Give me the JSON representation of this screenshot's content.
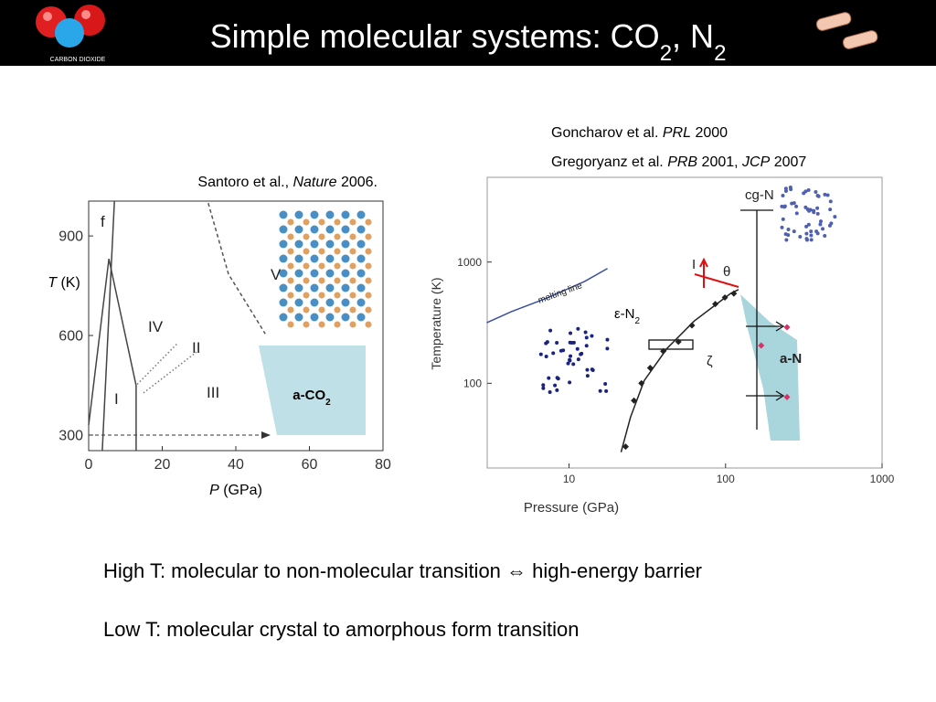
{
  "header": {
    "title": [
      "Simple molecular systems: CO",
      "2",
      ", N",
      "2"
    ],
    "logo_caption": "CARBON DIOXIDE"
  },
  "chart_data": [
    {
      "type": "line",
      "citation": [
        "Santoro et al.,",
        "Nature",
        "2006."
      ],
      "xlabel": [
        "P",
        "(GPa)"
      ],
      "ylabel": [
        "T",
        "(K)"
      ],
      "xlim": [
        0,
        80
      ],
      "xticks": [
        0,
        20,
        40,
        60,
        80
      ],
      "ylim": [
        253,
        1005
      ],
      "yticks": [
        300,
        600,
        900
      ],
      "series": [
        {
          "style": "line",
          "color": "#444444",
          "x": [
            3.7,
            7.0
          ],
          "values": [
            253,
            1005
          ]
        },
        {
          "style": "line",
          "color": "#444444",
          "x": [
            0,
            5.5,
            12.9,
            12.9
          ],
          "values": [
            330,
            831,
            449,
            253
          ]
        },
        {
          "style": "dotted",
          "color": "#777777",
          "x": [
            13.2,
            24.3
          ],
          "values": [
            453,
            578
          ]
        },
        {
          "style": "dotted",
          "color": "#777777",
          "x": [
            14.9,
            29.3
          ],
          "values": [
            427,
            550
          ]
        },
        {
          "style": "dashed",
          "color": "#555555",
          "x": [
            32.5,
            38,
            48
          ],
          "values": [
            999,
            785,
            605
          ]
        }
      ],
      "annotations": [
        "f",
        "V",
        "IV",
        "II",
        "III",
        "I"
      ],
      "region_label": [
        "a-CO",
        "2"
      ]
    },
    {
      "type": "line",
      "citation": [
        [
          "Goncharov et al.",
          "PRL",
          "2000"
        ],
        [
          "Gregoryanz et al.",
          "PRB",
          "2001,",
          "JCP",
          "2007"
        ]
      ],
      "xlabel": "Pressure (GPa)",
      "ylabel": "Temperature (K)",
      "xlog": true,
      "ylog": true,
      "xlim": [
        3,
        1000
      ],
      "xticks": [
        10,
        100,
        1000
      ],
      "ylim": [
        20,
        5000
      ],
      "yticks": [
        100,
        1000
      ],
      "series": [
        {
          "style": "line",
          "color": "#3a4fa0",
          "x": [
            2.98,
            4.28,
            7.3,
            12.6,
            17.6
          ],
          "values": [
            316,
            390,
            507,
            693,
            885
          ]
        },
        {
          "style": "line",
          "color": "#222222",
          "x": [
            21.5,
            24.7,
            30.2,
            42.3,
            63.2,
            108,
            121
          ],
          "values": [
            27,
            52.5,
            105,
            194,
            327,
            552,
            593
          ]
        },
        {
          "style": "markers",
          "color": "#222222",
          "x": [
            23,
            26,
            29,
            33,
            40,
            50,
            61,
            86,
            99,
            113
          ],
          "values": [
            30,
            72,
            100,
            134,
            184,
            220,
            300,
            450,
            510,
            550
          ]
        },
        {
          "style": "markers",
          "color": "#d8306a",
          "x": [
            247,
            169,
            247
          ],
          "values": [
            290,
            205,
            77
          ]
        }
      ],
      "annotations": [
        "melting line",
        "cg-N",
        "a-N",
        "ζ",
        "θ",
        "I"
      ],
      "phase_label": [
        "ε-N",
        "2"
      ]
    }
  ],
  "bullets": [
    "High T: molecular to non-molecular transition ⇔ high-energy barrier",
    "Low T: molecular crystal to amorphous form transition"
  ]
}
